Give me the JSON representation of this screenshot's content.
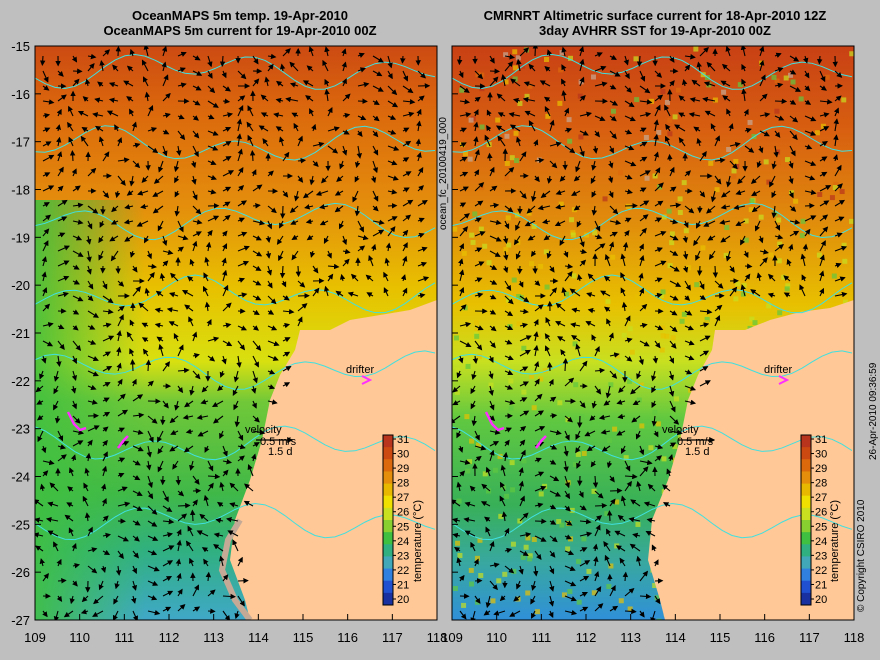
{
  "left_panel": {
    "title_line1": "OceanMAPS 5m temp. 19-Apr-2010",
    "title_line2": "OceanMAPS 5m current for 19-Apr-2010 00Z"
  },
  "right_panel": {
    "title_line1": "CMRNRT Altimetric surface current for 18-Apr-2010 12Z",
    "title_line2": "3day AVHRR SST for 19-Apr-2010 00Z"
  },
  "axes": {
    "x_ticks": [
      109,
      110,
      111,
      112,
      113,
      114,
      115,
      116,
      117,
      118
    ],
    "y_ticks": [
      -15,
      -16,
      -17,
      -18,
      -19,
      -20,
      -21,
      -22,
      -23,
      -24,
      -25,
      -26,
      -27
    ]
  },
  "colorbar": {
    "label": "temperature (°C)",
    "ticks": [
      31,
      30,
      29,
      28,
      27,
      26,
      25,
      24,
      23,
      22,
      21,
      20
    ],
    "colors": [
      "#b8341c",
      "#cc4a12",
      "#dc6a0c",
      "#e48e0c",
      "#e8b800",
      "#f0e000",
      "#c8e020",
      "#88d030",
      "#40c040",
      "#30b080",
      "#40a8b8",
      "#3080e0",
      "#2050d0",
      "#1830a0"
    ]
  },
  "legend": {
    "velocity_label": "velocity",
    "velocity_value": "0.5 m/s",
    "velocity_time": "1.5 d",
    "drifter_label": "drifter"
  },
  "side_texts": {
    "file_id": "ocean_fc_20100419_000",
    "copyright": "© Copyright CSIRO 2010",
    "timestamp": "26-Apr-2010 09:36:59"
  },
  "colors": {
    "land": "#ffc896",
    "coast_grey": "#c4aa96",
    "contour": "#40e0e0",
    "drifter": "#ff30ff",
    "background": "#bfbfbf"
  }
}
